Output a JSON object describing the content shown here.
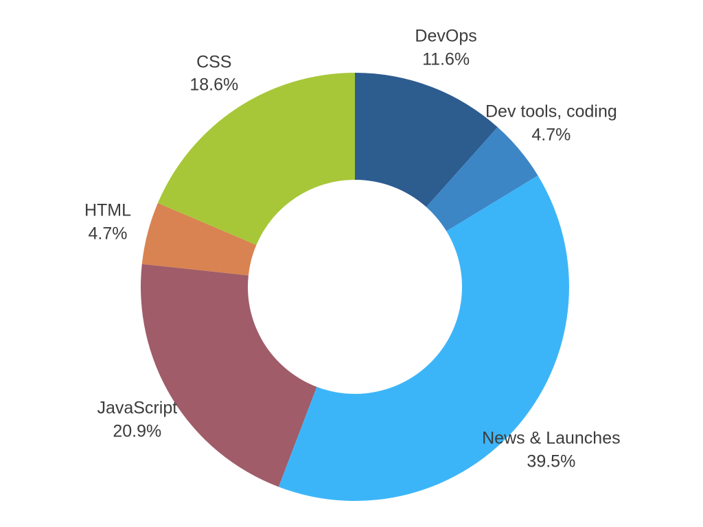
{
  "chart_data": {
    "type": "pie",
    "subtype": "donut",
    "title": "",
    "direction": "clockwise",
    "start_angle_deg": 0,
    "labels_outside": true,
    "legend_position": "none",
    "background_color": "#ffffff",
    "label_text_color": "#3b3b3b",
    "segments": [
      {
        "label": "DevOps",
        "value": 11.6,
        "display": "11.6%",
        "color": "#2d5c8f"
      },
      {
        "label": "Dev tools, coding",
        "value": 4.7,
        "display": "4.7%",
        "color": "#3d86c6"
      },
      {
        "label": "News & Launches",
        "value": 39.5,
        "display": "39.5%",
        "color": "#3cb5f8"
      },
      {
        "label": "JavaScript",
        "value": 20.9,
        "display": "20.9%",
        "color": "#a05c69"
      },
      {
        "label": "HTML",
        "value": 4.7,
        "display": "4.7%",
        "color": "#d98352"
      },
      {
        "label": "CSS",
        "value": 18.6,
        "display": "18.6%",
        "color": "#a7c738"
      }
    ]
  }
}
